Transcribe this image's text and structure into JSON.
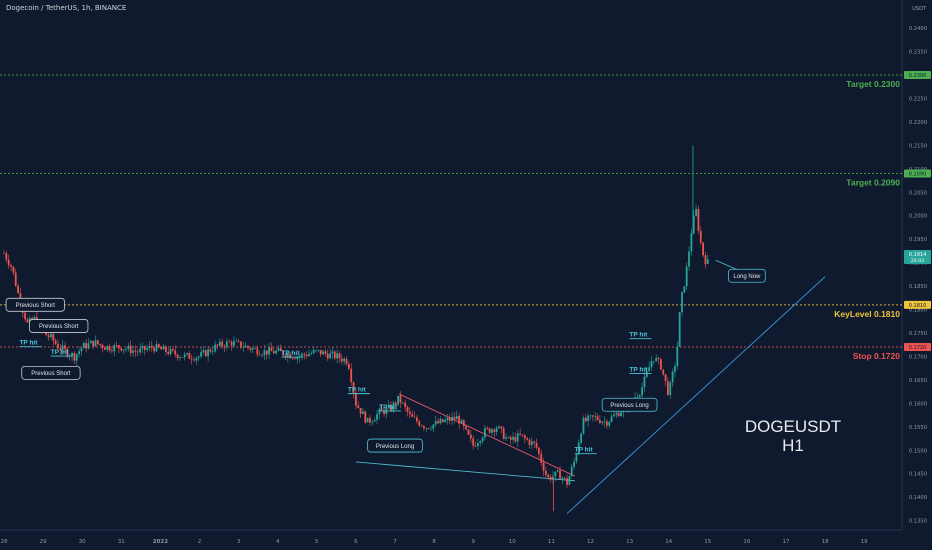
{
  "header": {
    "title": "Dogecoin / TetherUS, 1h, BINANCE",
    "unit": "USDT"
  },
  "chart_data": {
    "type": "candlestick",
    "symbol": "DOGEUSDT",
    "timeframe": "H1",
    "ylim": [
      0.133,
      0.243
    ],
    "y_ticks": [
      0.135,
      0.14,
      0.145,
      0.15,
      0.155,
      0.16,
      0.165,
      0.17,
      0.175,
      0.18,
      0.185,
      0.19,
      0.195,
      0.2,
      0.205,
      0.21,
      0.215,
      0.22,
      0.225,
      0.23,
      0.235,
      0.24
    ],
    "x_ticks": [
      {
        "label": "28",
        "pos": 0
      },
      {
        "label": "29",
        "pos": 1
      },
      {
        "label": "30",
        "pos": 2
      },
      {
        "label": "31",
        "pos": 3
      },
      {
        "label": "2022",
        "pos": 4
      },
      {
        "label": "2",
        "pos": 5
      },
      {
        "label": "3",
        "pos": 6
      },
      {
        "label": "4",
        "pos": 7
      },
      {
        "label": "5",
        "pos": 8
      },
      {
        "label": "6",
        "pos": 9
      },
      {
        "label": "7",
        "pos": 10
      },
      {
        "label": "8",
        "pos": 11
      },
      {
        "label": "9",
        "pos": 12
      },
      {
        "label": "10",
        "pos": 13
      },
      {
        "label": "11",
        "pos": 14
      },
      {
        "label": "12",
        "pos": 15
      },
      {
        "label": "13",
        "pos": 16
      },
      {
        "label": "14",
        "pos": 17
      },
      {
        "label": "15",
        "pos": 18
      },
      {
        "label": "16",
        "pos": 19
      },
      {
        "label": "17",
        "pos": 20
      },
      {
        "label": "18",
        "pos": 21
      },
      {
        "label": "19",
        "pos": 22
      }
    ],
    "levels": [
      {
        "name": "Target",
        "value": 0.23,
        "label": "Target 0.2300",
        "tag": "0.2300",
        "color": "#4caf50"
      },
      {
        "name": "Target",
        "value": 0.209,
        "label": "Target 0.2090",
        "tag": "0.2090",
        "color": "#4caf50"
      },
      {
        "name": "KeyLevel",
        "value": 0.181,
        "label": "KeyLevel 0.1810",
        "tag": "0.1810",
        "color": "#f0c33c"
      },
      {
        "name": "Stop",
        "value": 0.172,
        "label": "Stop 0.1720",
        "tag": "0.1720",
        "color": "#ef5350"
      }
    ],
    "last_price": {
      "value": 0.1914,
      "label": "0.1914",
      "countdown": "24:02",
      "color": "#26a69a"
    },
    "price_path": [
      [
        0.0,
        0.192
      ],
      [
        0.2,
        0.189
      ],
      [
        0.4,
        0.182
      ],
      [
        0.6,
        0.177
      ],
      [
        0.8,
        0.178
      ],
      [
        1.0,
        0.175
      ],
      [
        1.2,
        0.174
      ],
      [
        1.4,
        0.172
      ],
      [
        1.6,
        0.171
      ],
      [
        1.8,
        0.17
      ],
      [
        2.0,
        0.172
      ],
      [
        2.3,
        0.173
      ],
      [
        2.6,
        0.172
      ],
      [
        3.0,
        0.172
      ],
      [
        3.4,
        0.171
      ],
      [
        3.8,
        0.172
      ],
      [
        4.2,
        0.171
      ],
      [
        4.6,
        0.17
      ],
      [
        5.0,
        0.17
      ],
      [
        5.4,
        0.172
      ],
      [
        5.8,
        0.173
      ],
      [
        6.2,
        0.172
      ],
      [
        6.6,
        0.171
      ],
      [
        7.0,
        0.171
      ],
      [
        7.5,
        0.17
      ],
      [
        8.0,
        0.171
      ],
      [
        8.5,
        0.17
      ],
      [
        8.8,
        0.169
      ],
      [
        9.0,
        0.16
      ],
      [
        9.3,
        0.156
      ],
      [
        9.6,
        0.158
      ],
      [
        9.9,
        0.159
      ],
      [
        10.1,
        0.161
      ],
      [
        10.4,
        0.157
      ],
      [
        10.8,
        0.155
      ],
      [
        11.2,
        0.156
      ],
      [
        11.6,
        0.157
      ],
      [
        12.0,
        0.151
      ],
      [
        12.3,
        0.154
      ],
      [
        12.6,
        0.155
      ],
      [
        12.9,
        0.152
      ],
      [
        13.2,
        0.153
      ],
      [
        13.6,
        0.151
      ],
      [
        13.9,
        0.144
      ],
      [
        14.2,
        0.145
      ],
      [
        14.4,
        0.143
      ],
      [
        14.6,
        0.148
      ],
      [
        14.8,
        0.156
      ],
      [
        15.1,
        0.157
      ],
      [
        15.4,
        0.156
      ],
      [
        15.7,
        0.158
      ],
      [
        16.0,
        0.16
      ],
      [
        16.3,
        0.163
      ],
      [
        16.6,
        0.17
      ],
      [
        16.8,
        0.168
      ],
      [
        17.0,
        0.162
      ],
      [
        17.2,
        0.17
      ],
      [
        17.3,
        0.181
      ],
      [
        17.45,
        0.188
      ],
      [
        17.6,
        0.198
      ],
      [
        17.7,
        0.201
      ],
      [
        17.8,
        0.195
      ],
      [
        17.9,
        0.191
      ],
      [
        18.0,
        0.19
      ]
    ],
    "annotations": [
      {
        "text": "Previous Short",
        "x": 0.8,
        "y": 0.181
      },
      {
        "text": "Previous Short",
        "x": 1.4,
        "y": 0.1765
      },
      {
        "text": "Previous Short",
        "x": 1.2,
        "y": 0.1665
      },
      {
        "text": "Previous Long",
        "x": 10.0,
        "y": 0.151
      },
      {
        "text": "Previous Long",
        "x": 16.0,
        "y": 0.1597
      },
      {
        "text": "Long Now",
        "x": 19.0,
        "y": 0.1872
      }
    ],
    "tp_hits": [
      {
        "text": "TP hit",
        "x": 0.6,
        "y": 0.1725
      },
      {
        "text": "TP hit",
        "x": 1.4,
        "y": 0.1705
      },
      {
        "text": "TP hit",
        "x": 7.3,
        "y": 0.1703
      },
      {
        "text": "TP hit",
        "x": 9.0,
        "y": 0.1625
      },
      {
        "text": "TP hit",
        "x": 9.8,
        "y": 0.1588
      },
      {
        "text": "TP hit",
        "x": 14.8,
        "y": 0.1497
      },
      {
        "text": "TP hit",
        "x": 16.2,
        "y": 0.1742
      },
      {
        "text": "TP hit",
        "x": 16.2,
        "y": 0.1668
      }
    ],
    "trendlines": [
      {
        "from": [
          10.1,
          0.162
        ],
        "to": [
          14.6,
          0.1445
        ],
        "color": "#e5566a"
      },
      {
        "from": [
          9.0,
          0.1475
        ],
        "to": [
          14.6,
          0.1435
        ],
        "color": "#4fb4c9"
      },
      {
        "from": [
          14.4,
          0.1365
        ],
        "to": [
          21.0,
          0.187
        ],
        "color": "#3a9ad9"
      }
    ],
    "watermark": [
      "DOGEUSDT",
      "H1"
    ]
  }
}
